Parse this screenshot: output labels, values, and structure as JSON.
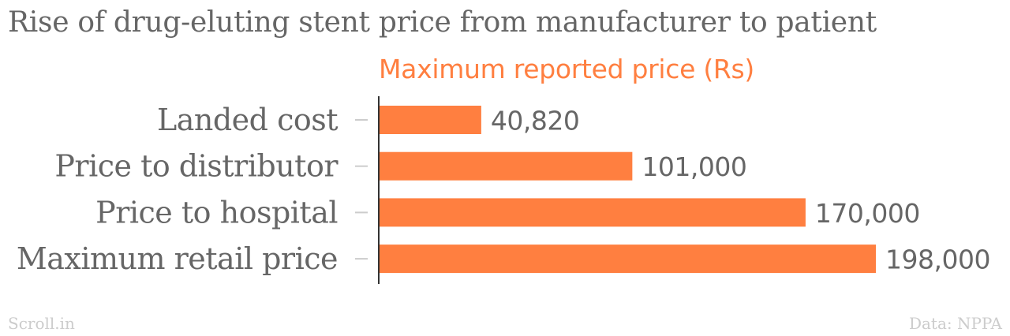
{
  "chart_data": {
    "type": "bar",
    "orientation": "horizontal",
    "title": "Rise of drug-eluting stent price from manufacturer to patient",
    "categories": [
      "Landed cost",
      "Price to distributor",
      "Price to hospital",
      "Maximum retail price"
    ],
    "series": [
      {
        "name": "Maximum reported price (Rs)",
        "values": [
          40820,
          101000,
          170000,
          198000
        ],
        "value_labels": [
          "40,820",
          "101,000",
          "170,000",
          "198,000"
        ],
        "color": "#ff7f40"
      }
    ],
    "xlim": [
      0,
      198000
    ],
    "grid": false,
    "legend": "none"
  },
  "footer": {
    "source_brand": "Scroll.in",
    "data_source": "Data: NPPA"
  },
  "colors": {
    "bar": "#ff7f40",
    "text": "#666666",
    "footer": "#cccccc",
    "axis": "#333333",
    "tick": "#cccccc"
  }
}
